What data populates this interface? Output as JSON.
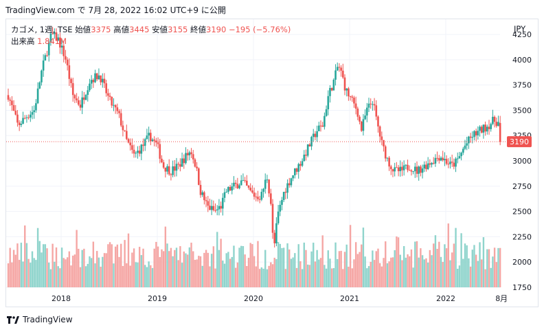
{
  "header": {
    "source": "TradingView.com で 7月 28, 2022 16:02 UTC+9 に公開"
  },
  "legend": {
    "symbol": "カゴメ, 1週, TSE",
    "open_label": "始値",
    "open": "3375",
    "high_label": "高値",
    "high": "3445",
    "low_label": "安値",
    "low": "3155",
    "close_label": "終値",
    "close": "3190",
    "change": "−195 (−5.76%)",
    "volume_label": "出来高",
    "volume": "1.841M"
  },
  "currency": "JPY",
  "footer": {
    "brand": "TradingView"
  },
  "colors": {
    "up": "#26a69a",
    "down": "#ef5350",
    "up_volume": "#8fd4cc",
    "down_volume": "#f5a6a4",
    "grid": "#f0f3fa",
    "last_line": "#ef5350"
  },
  "chart_data": {
    "type": "candlestick",
    "interval": "1 week",
    "x_axis": {
      "tick_labels": [
        "2018",
        "2019",
        "2020",
        "2021",
        "2022",
        "8月"
      ]
    },
    "y_axis": {
      "tick_values": [
        1750,
        2000,
        2250,
        2500,
        2750,
        3000,
        3250,
        3500,
        3750,
        4000,
        4250
      ],
      "range": [
        1750,
        4400
      ],
      "side": "right"
    },
    "last_price": 3190,
    "grid": true,
    "trend": [
      {
        "x": 2017.45,
        "y": 3650
      },
      {
        "x": 2017.55,
        "y": 3350
      },
      {
        "x": 2017.65,
        "y": 3450
      },
      {
        "x": 2017.72,
        "y": 3500
      },
      {
        "x": 2017.8,
        "y": 3900
      },
      {
        "x": 2017.9,
        "y": 4250
      },
      {
        "x": 2017.97,
        "y": 4200
      },
      {
        "x": 2018.05,
        "y": 4000
      },
      {
        "x": 2018.12,
        "y": 3650
      },
      {
        "x": 2018.2,
        "y": 3550
      },
      {
        "x": 2018.3,
        "y": 3800
      },
      {
        "x": 2018.4,
        "y": 3850
      },
      {
        "x": 2018.5,
        "y": 3600
      },
      {
        "x": 2018.6,
        "y": 3450
      },
      {
        "x": 2018.68,
        "y": 3200
      },
      {
        "x": 2018.76,
        "y": 3050
      },
      {
        "x": 2018.85,
        "y": 3150
      },
      {
        "x": 2018.92,
        "y": 3250
      },
      {
        "x": 2019.0,
        "y": 3150
      },
      {
        "x": 2019.06,
        "y": 2950
      },
      {
        "x": 2019.14,
        "y": 2900
      },
      {
        "x": 2019.22,
        "y": 2950
      },
      {
        "x": 2019.3,
        "y": 3050
      },
      {
        "x": 2019.35,
        "y": 3100
      },
      {
        "x": 2019.4,
        "y": 2950
      },
      {
        "x": 2019.45,
        "y": 2700
      },
      {
        "x": 2019.52,
        "y": 2550
      },
      {
        "x": 2019.6,
        "y": 2500
      },
      {
        "x": 2019.66,
        "y": 2550
      },
      {
        "x": 2019.72,
        "y": 2700
      },
      {
        "x": 2019.8,
        "y": 2750
      },
      {
        "x": 2019.88,
        "y": 2800
      },
      {
        "x": 2019.96,
        "y": 2700
      },
      {
        "x": 2020.02,
        "y": 2650
      },
      {
        "x": 2020.08,
        "y": 2650
      },
      {
        "x": 2020.14,
        "y": 2850
      },
      {
        "x": 2020.18,
        "y": 2600
      },
      {
        "x": 2020.21,
        "y": 2100
      },
      {
        "x": 2020.25,
        "y": 2450
      },
      {
        "x": 2020.32,
        "y": 2700
      },
      {
        "x": 2020.4,
        "y": 2850
      },
      {
        "x": 2020.5,
        "y": 3000
      },
      {
        "x": 2020.58,
        "y": 3150
      },
      {
        "x": 2020.66,
        "y": 3300
      },
      {
        "x": 2020.72,
        "y": 3350
      },
      {
        "x": 2020.78,
        "y": 3650
      },
      {
        "x": 2020.84,
        "y": 3800
      },
      {
        "x": 2020.88,
        "y": 3950
      },
      {
        "x": 2020.92,
        "y": 3850
      },
      {
        "x": 2020.96,
        "y": 3700
      },
      {
        "x": 2021.02,
        "y": 3600
      },
      {
        "x": 2021.08,
        "y": 3500
      },
      {
        "x": 2021.12,
        "y": 3300
      },
      {
        "x": 2021.18,
        "y": 3500
      },
      {
        "x": 2021.24,
        "y": 3600
      },
      {
        "x": 2021.28,
        "y": 3400
      },
      {
        "x": 2021.34,
        "y": 3150
      },
      {
        "x": 2021.4,
        "y": 3000
      },
      {
        "x": 2021.46,
        "y": 2900
      },
      {
        "x": 2021.54,
        "y": 2900
      },
      {
        "x": 2021.62,
        "y": 2950
      },
      {
        "x": 2021.7,
        "y": 2900
      },
      {
        "x": 2021.78,
        "y": 2950
      },
      {
        "x": 2021.86,
        "y": 3000
      },
      {
        "x": 2021.94,
        "y": 3050
      },
      {
        "x": 2022.0,
        "y": 3000
      },
      {
        "x": 2022.06,
        "y": 2950
      },
      {
        "x": 2022.12,
        "y": 3000
      },
      {
        "x": 2022.2,
        "y": 3150
      },
      {
        "x": 2022.28,
        "y": 3250
      },
      {
        "x": 2022.36,
        "y": 3300
      },
      {
        "x": 2022.44,
        "y": 3350
      },
      {
        "x": 2022.5,
        "y": 3400
      },
      {
        "x": 2022.55,
        "y": 3375
      },
      {
        "x": 2022.57,
        "y": 3190
      }
    ]
  }
}
